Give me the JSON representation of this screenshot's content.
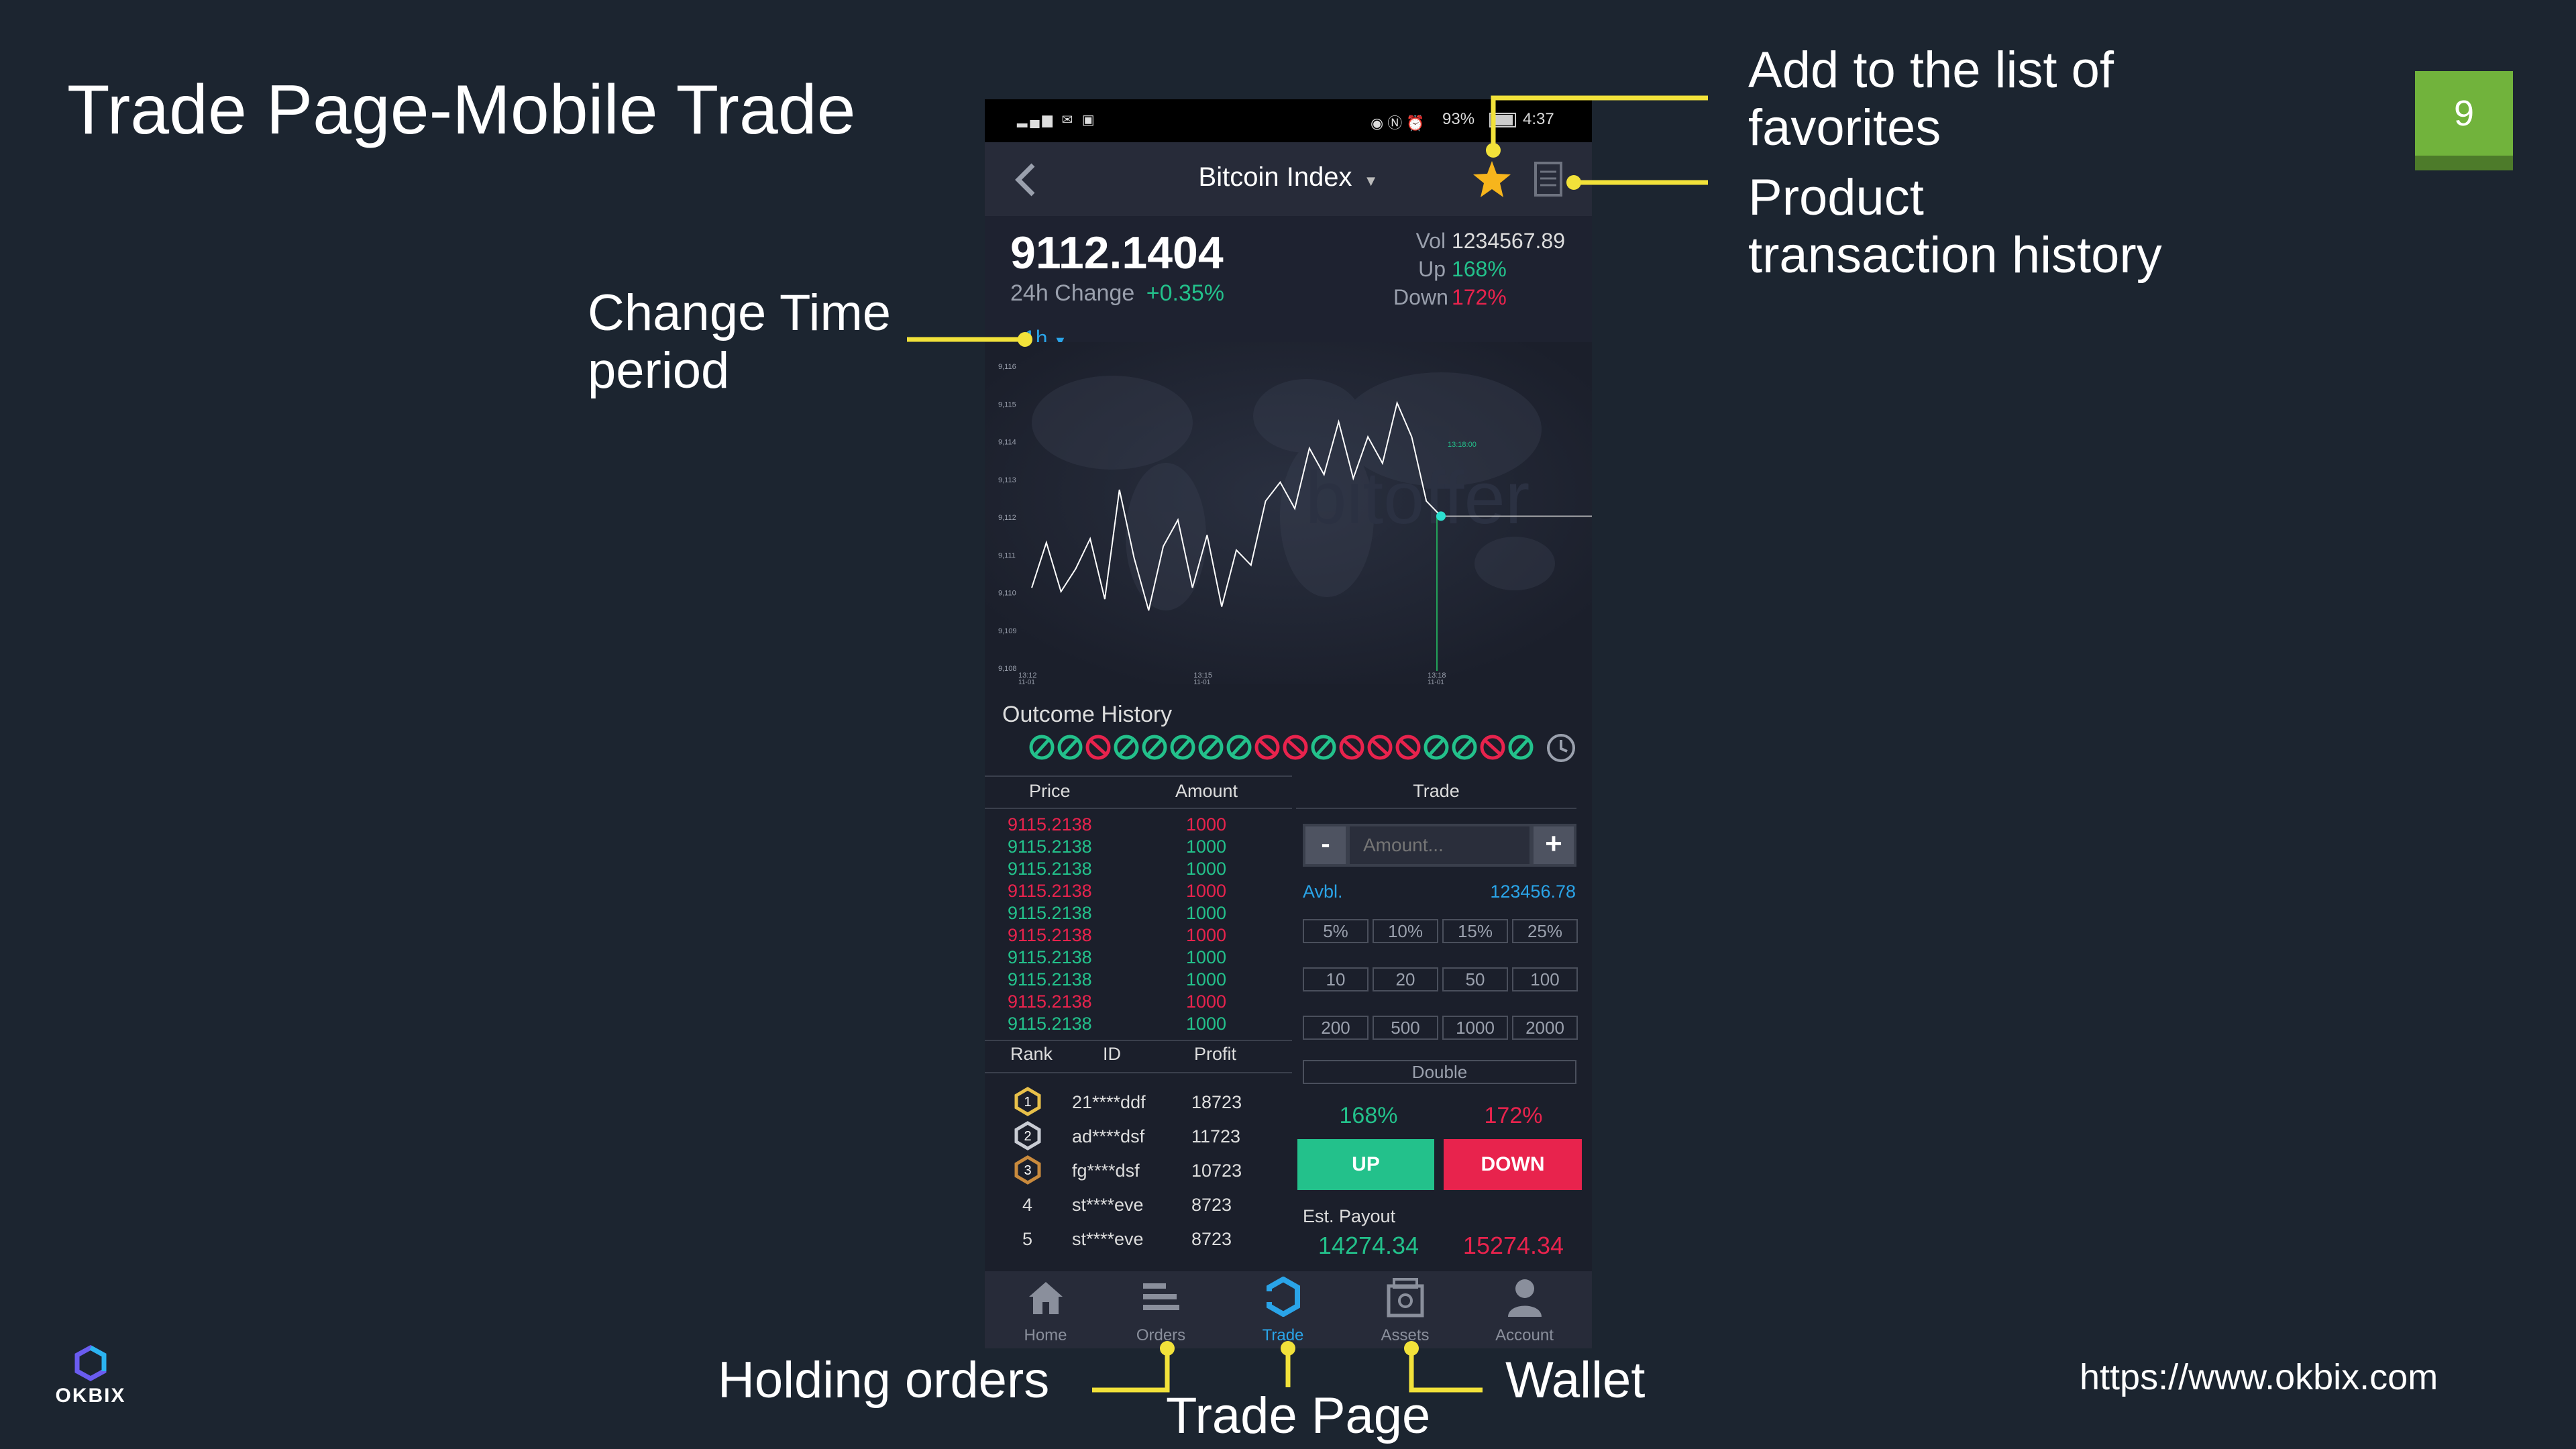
{
  "slide": {
    "title": "Trade Page-Mobile Trade",
    "page_number": "9",
    "url": "https://www.okbix.com",
    "logo_text": "OKBIX"
  },
  "annotations": {
    "favorites_line1": "Add to the list of",
    "favorites_line2": "favorites",
    "history_line1": "Product",
    "history_line2": "transaction history",
    "time_line1": "Change Time",
    "time_line2": "period",
    "holding_orders": "Holding orders",
    "trade_page": "Trade Page",
    "wallet": "Wallet"
  },
  "status_bar": {
    "battery": "93%",
    "time": "4:37"
  },
  "header": {
    "title": "Bitcoin Index",
    "icons": [
      "back-arrow-icon",
      "chevron-down-icon",
      "star-icon",
      "document-icon"
    ]
  },
  "market": {
    "price": "9112.1404",
    "change_label": "24h Change",
    "change_value": "+0.35%",
    "vol_label": "Vol",
    "vol_value": "1234567.89",
    "up_label": "Up",
    "up_value": "168%",
    "down_label": "Down",
    "down_value": "172%"
  },
  "chart": {
    "period": "1h",
    "watermark": "bitoffer"
  },
  "chart_data": {
    "type": "line",
    "y_ticks": [
      "9,116",
      "9,115",
      "9,114",
      "9,113",
      "9,112",
      "9,111",
      "9,110",
      "9,109",
      "9,108"
    ],
    "x_ticks": [
      {
        "time": "13:12",
        "date": "11-01"
      },
      {
        "time": "13:15",
        "date": "11-01"
      },
      {
        "time": "13:18",
        "date": "11-01"
      }
    ],
    "top_label": "13:18:00",
    "ylim": [
      9108,
      9116
    ],
    "x": [
      0,
      0.25,
      0.5,
      0.75,
      1,
      1.25,
      1.5,
      1.75,
      2,
      2.25,
      2.5,
      2.75,
      3,
      3.25,
      3.5,
      3.75,
      4,
      4.25,
      4.5,
      4.75,
      5,
      5.25,
      5.5,
      5.75,
      6,
      6.25,
      6.5,
      6.75,
      7
    ],
    "y": [
      9110.2,
      9111.4,
      9110.1,
      9110.7,
      9111.5,
      9109.9,
      9112.8,
      9111.0,
      9109.6,
      9111.3,
      9112.0,
      9110.2,
      9111.6,
      9109.7,
      9111.2,
      9110.8,
      9112.5,
      9113.0,
      9112.3,
      9113.9,
      9113.2,
      9114.6,
      9113.1,
      9114.2,
      9113.5,
      9115.1,
      9114.2,
      9112.5,
      9112.1
    ],
    "grid": false
  },
  "outcome_history": {
    "title": "Outcome History",
    "results": [
      "up",
      "up",
      "down",
      "up",
      "up",
      "up",
      "up",
      "up",
      "down",
      "down",
      "up",
      "down",
      "down",
      "down",
      "up",
      "up",
      "down",
      "up"
    ],
    "icon": "clock-icon"
  },
  "order_book": {
    "headers": [
      "Price",
      "Amount"
    ],
    "rows": [
      {
        "price": "9115.2138",
        "amount": "1000",
        "side": "red"
      },
      {
        "price": "9115.2138",
        "amount": "1000",
        "side": "green"
      },
      {
        "price": "9115.2138",
        "amount": "1000",
        "side": "green"
      },
      {
        "price": "9115.2138",
        "amount": "1000",
        "side": "red"
      },
      {
        "price": "9115.2138",
        "amount": "1000",
        "side": "green"
      },
      {
        "price": "9115.2138",
        "amount": "1000",
        "side": "red"
      },
      {
        "price": "9115.2138",
        "amount": "1000",
        "side": "green"
      },
      {
        "price": "9115.2138",
        "amount": "1000",
        "side": "green"
      },
      {
        "price": "9115.2138",
        "amount": "1000",
        "side": "red"
      },
      {
        "price": "9115.2138",
        "amount": "1000",
        "side": "green"
      }
    ]
  },
  "leaderboard": {
    "headers": [
      "Rank",
      "ID",
      "Profit"
    ],
    "rows": [
      {
        "rank": "1",
        "id": "21****ddf",
        "profit": "18723"
      },
      {
        "rank": "2",
        "id": "ad****dsf",
        "profit": "11723"
      },
      {
        "rank": "3",
        "id": "fg****dsf",
        "profit": "10723"
      },
      {
        "rank": "4",
        "id": "st****eve",
        "profit": "8723"
      },
      {
        "rank": "5",
        "id": "st****eve",
        "profit": "8723"
      }
    ]
  },
  "trade": {
    "header": "Trade",
    "minus": "-",
    "plus": "+",
    "amount_placeholder": "Amount...",
    "avbl_label": "Avbl.",
    "avbl_value": "123456.78",
    "percent_buttons": [
      "5%",
      "10%",
      "15%",
      "25%"
    ],
    "amount_buttons_1": [
      "10",
      "20",
      "50",
      "100"
    ],
    "amount_buttons_2": [
      "200",
      "500",
      "1000",
      "2000"
    ],
    "double_label": "Double",
    "up_rate": "168%",
    "down_rate": "172%",
    "up_label": "UP",
    "down_label": "DOWN",
    "payout_label": "Est. Payout",
    "payout_up": "14274.34",
    "payout_down": "15274.34"
  },
  "tabbar": {
    "items": [
      {
        "label": "Home",
        "icon": "home-icon"
      },
      {
        "label": "Orders",
        "icon": "orders-icon"
      },
      {
        "label": "Trade",
        "icon": "trade-icon"
      },
      {
        "label": "Assets",
        "icon": "assets-icon"
      },
      {
        "label": "Account",
        "icon": "account-icon"
      }
    ]
  },
  "colors": {
    "background": "#1c2530",
    "accent_yellow": "#f2e23a",
    "up_green": "#23c18b",
    "down_red": "#e8234d",
    "active_blue": "#2aa4e8",
    "badge_green": "#71b33c"
  }
}
